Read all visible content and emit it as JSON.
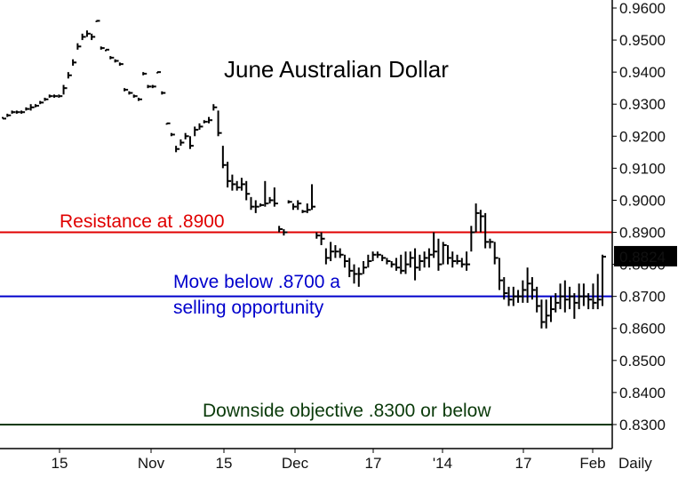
{
  "chart_data": {
    "type": "ohlc",
    "title": "June Australian Dollar",
    "frequency_label": "Daily",
    "y_axis": {
      "position": "right",
      "ylim": [
        0.8225,
        0.9625
      ],
      "ticks": [
        "0.8300",
        "0.8400",
        "0.8500",
        "0.8600",
        "0.8700",
        "0.8800",
        "0.8900",
        "0.9000",
        "0.9100",
        "0.9200",
        "0.9300",
        "0.9400",
        "0.9500",
        "0.9600"
      ]
    },
    "x_axis": {
      "ticks": [
        "15",
        "Nov",
        "15",
        "Dec",
        "17",
        "'14",
        "17",
        "Feb"
      ]
    },
    "last_price": {
      "value": 0.8824,
      "label": "0.8824"
    },
    "reference_lines": [
      {
        "name": "resistance",
        "value": 0.89,
        "color": "#e00000",
        "label": "Resistance at .8900"
      },
      {
        "name": "support",
        "value": 0.87,
        "color": "#0000cc",
        "label": "Move below .8700 a",
        "label2": "selling opportunity"
      },
      {
        "name": "objective",
        "value": 0.83,
        "color": "#0a3a0a",
        "label": "Downside objective .8300 or below"
      }
    ],
    "bars": [
      [
        0.926,
        0.9255,
        0.9255
      ],
      [
        0.927,
        0.926,
        0.9265
      ],
      [
        0.928,
        0.927,
        0.9275
      ],
      [
        0.928,
        0.927,
        0.9275
      ],
      [
        0.928,
        0.927,
        0.9275
      ],
      [
        0.929,
        0.928,
        0.9285
      ],
      [
        0.93,
        0.928,
        0.929
      ],
      [
        0.93,
        0.929,
        0.9295
      ],
      [
        0.931,
        0.93,
        0.9305
      ],
      [
        0.932,
        0.931,
        0.9315
      ],
      [
        0.933,
        0.932,
        0.9325
      ],
      [
        0.933,
        0.932,
        0.9325
      ],
      [
        0.933,
        0.932,
        0.9325
      ],
      [
        0.936,
        0.933,
        0.935
      ],
      [
        0.94,
        0.938,
        0.939
      ],
      [
        0.944,
        0.942,
        0.943
      ],
      [
        0.949,
        0.947,
        0.948
      ],
      [
        0.952,
        0.95,
        0.951
      ],
      [
        0.953,
        0.951,
        0.952
      ],
      [
        0.952,
        0.95,
        0.951
      ],
      [
        0.956,
        0.956,
        0.956
      ],
      [
        0.948,
        0.947,
        0.9475
      ],
      [
        0.947,
        0.9465,
        0.947
      ],
      [
        0.945,
        0.944,
        0.9445
      ],
      [
        0.944,
        0.943,
        0.9435
      ],
      [
        0.943,
        0.942,
        0.9425
      ],
      [
        0.935,
        0.934,
        0.9345
      ],
      [
        0.934,
        0.933,
        0.9335
      ],
      [
        0.933,
        0.932,
        0.9325
      ],
      [
        0.932,
        0.931,
        0.9315
      ],
      [
        0.94,
        0.939,
        0.9395
      ],
      [
        0.936,
        0.935,
        0.9355
      ],
      [
        0.936,
        0.935,
        0.9355
      ],
      [
        0.94,
        0.94,
        0.94
      ],
      [
        0.934,
        0.933,
        0.9335
      ],
      [
        0.924,
        0.924,
        0.924
      ],
      [
        0.921,
        0.92,
        0.9205
      ],
      [
        0.917,
        0.915,
        0.916
      ],
      [
        0.919,
        0.917,
        0.918
      ],
      [
        0.921,
        0.919,
        0.92
      ],
      [
        0.92,
        0.916,
        0.917
      ],
      [
        0.923,
        0.92,
        0.922
      ],
      [
        0.924,
        0.922,
        0.923
      ],
      [
        0.925,
        0.924,
        0.9245
      ],
      [
        0.926,
        0.924,
        0.925
      ],
      [
        0.93,
        0.928,
        0.929
      ],
      [
        0.928,
        0.92,
        0.921
      ],
      [
        0.917,
        0.91,
        0.911
      ],
      [
        0.912,
        0.904,
        0.906
      ],
      [
        0.908,
        0.903,
        0.905
      ],
      [
        0.906,
        0.903,
        0.904
      ],
      [
        0.907,
        0.903,
        0.905
      ],
      [
        0.906,
        0.9,
        0.902
      ],
      [
        0.901,
        0.897,
        0.898
      ],
      [
        0.9,
        0.896,
        0.898
      ],
      [
        0.899,
        0.898,
        0.8985
      ],
      [
        0.906,
        0.898,
        0.899
      ],
      [
        0.901,
        0.899,
        0.9
      ],
      [
        0.904,
        0.898,
        0.899
      ],
      [
        0.892,
        0.89,
        0.891
      ],
      [
        0.891,
        0.889,
        0.89
      ],
      [
        0.9,
        0.899,
        0.8995
      ],
      [
        0.899,
        0.897,
        0.898
      ],
      [
        0.9,
        0.897,
        0.899
      ],
      [
        0.897,
        0.896,
        0.8965
      ],
      [
        0.899,
        0.896,
        0.897
      ],
      [
        0.905,
        0.897,
        0.898
      ],
      [
        0.89,
        0.888,
        0.889
      ],
      [
        0.89,
        0.886,
        0.888
      ],
      [
        0.885,
        0.88,
        0.882
      ],
      [
        0.887,
        0.881,
        0.884
      ],
      [
        0.886,
        0.882,
        0.884
      ],
      [
        0.885,
        0.882,
        0.883
      ],
      [
        0.883,
        0.879,
        0.881
      ],
      [
        0.882,
        0.876,
        0.878
      ],
      [
        0.88,
        0.874,
        0.877
      ],
      [
        0.879,
        0.873,
        0.877
      ],
      [
        0.881,
        0.877,
        0.879
      ],
      [
        0.883,
        0.879,
        0.881
      ],
      [
        0.884,
        0.881,
        0.883
      ],
      [
        0.884,
        0.882,
        0.883
      ],
      [
        0.883,
        0.881,
        0.882
      ],
      [
        0.882,
        0.88,
        0.881
      ],
      [
        0.881,
        0.879,
        0.88
      ],
      [
        0.882,
        0.878,
        0.879
      ],
      [
        0.883,
        0.877,
        0.878
      ],
      [
        0.884,
        0.877,
        0.88
      ],
      [
        0.884,
        0.879,
        0.882
      ],
      [
        0.885,
        0.875,
        0.879
      ],
      [
        0.883,
        0.878,
        0.881
      ],
      [
        0.884,
        0.879,
        0.882
      ],
      [
        0.885,
        0.879,
        0.883
      ],
      [
        0.89,
        0.882,
        0.884
      ],
      [
        0.888,
        0.878,
        0.88
      ],
      [
        0.887,
        0.88,
        0.886
      ],
      [
        0.886,
        0.88,
        0.882
      ],
      [
        0.884,
        0.879,
        0.881
      ],
      [
        0.883,
        0.88,
        0.881
      ],
      [
        0.882,
        0.879,
        0.88
      ],
      [
        0.884,
        0.878,
        0.88
      ],
      [
        0.892,
        0.884,
        0.89
      ],
      [
        0.899,
        0.89,
        0.896
      ],
      [
        0.897,
        0.89,
        0.895
      ],
      [
        0.896,
        0.885,
        0.887
      ],
      [
        0.888,
        0.885,
        0.887
      ],
      [
        0.887,
        0.88,
        0.882
      ],
      [
        0.882,
        0.872,
        0.875
      ],
      [
        0.876,
        0.869,
        0.871
      ],
      [
        0.873,
        0.867,
        0.869
      ],
      [
        0.873,
        0.867,
        0.87
      ],
      [
        0.872,
        0.868,
        0.87
      ],
      [
        0.875,
        0.868,
        0.872
      ],
      [
        0.879,
        0.868,
        0.874
      ],
      [
        0.876,
        0.869,
        0.872
      ],
      [
        0.873,
        0.865,
        0.867
      ],
      [
        0.869,
        0.86,
        0.862
      ],
      [
        0.869,
        0.86,
        0.864
      ],
      [
        0.87,
        0.862,
        0.866
      ],
      [
        0.871,
        0.865,
        0.868
      ],
      [
        0.874,
        0.866,
        0.87
      ],
      [
        0.875,
        0.865,
        0.869
      ],
      [
        0.873,
        0.866,
        0.87
      ],
      [
        0.871,
        0.863,
        0.868
      ],
      [
        0.874,
        0.866,
        0.87
      ],
      [
        0.874,
        0.867,
        0.87
      ],
      [
        0.871,
        0.866,
        0.869
      ],
      [
        0.874,
        0.866,
        0.868
      ],
      [
        0.877,
        0.866,
        0.869
      ],
      [
        0.883,
        0.867,
        0.8824
      ]
    ]
  }
}
